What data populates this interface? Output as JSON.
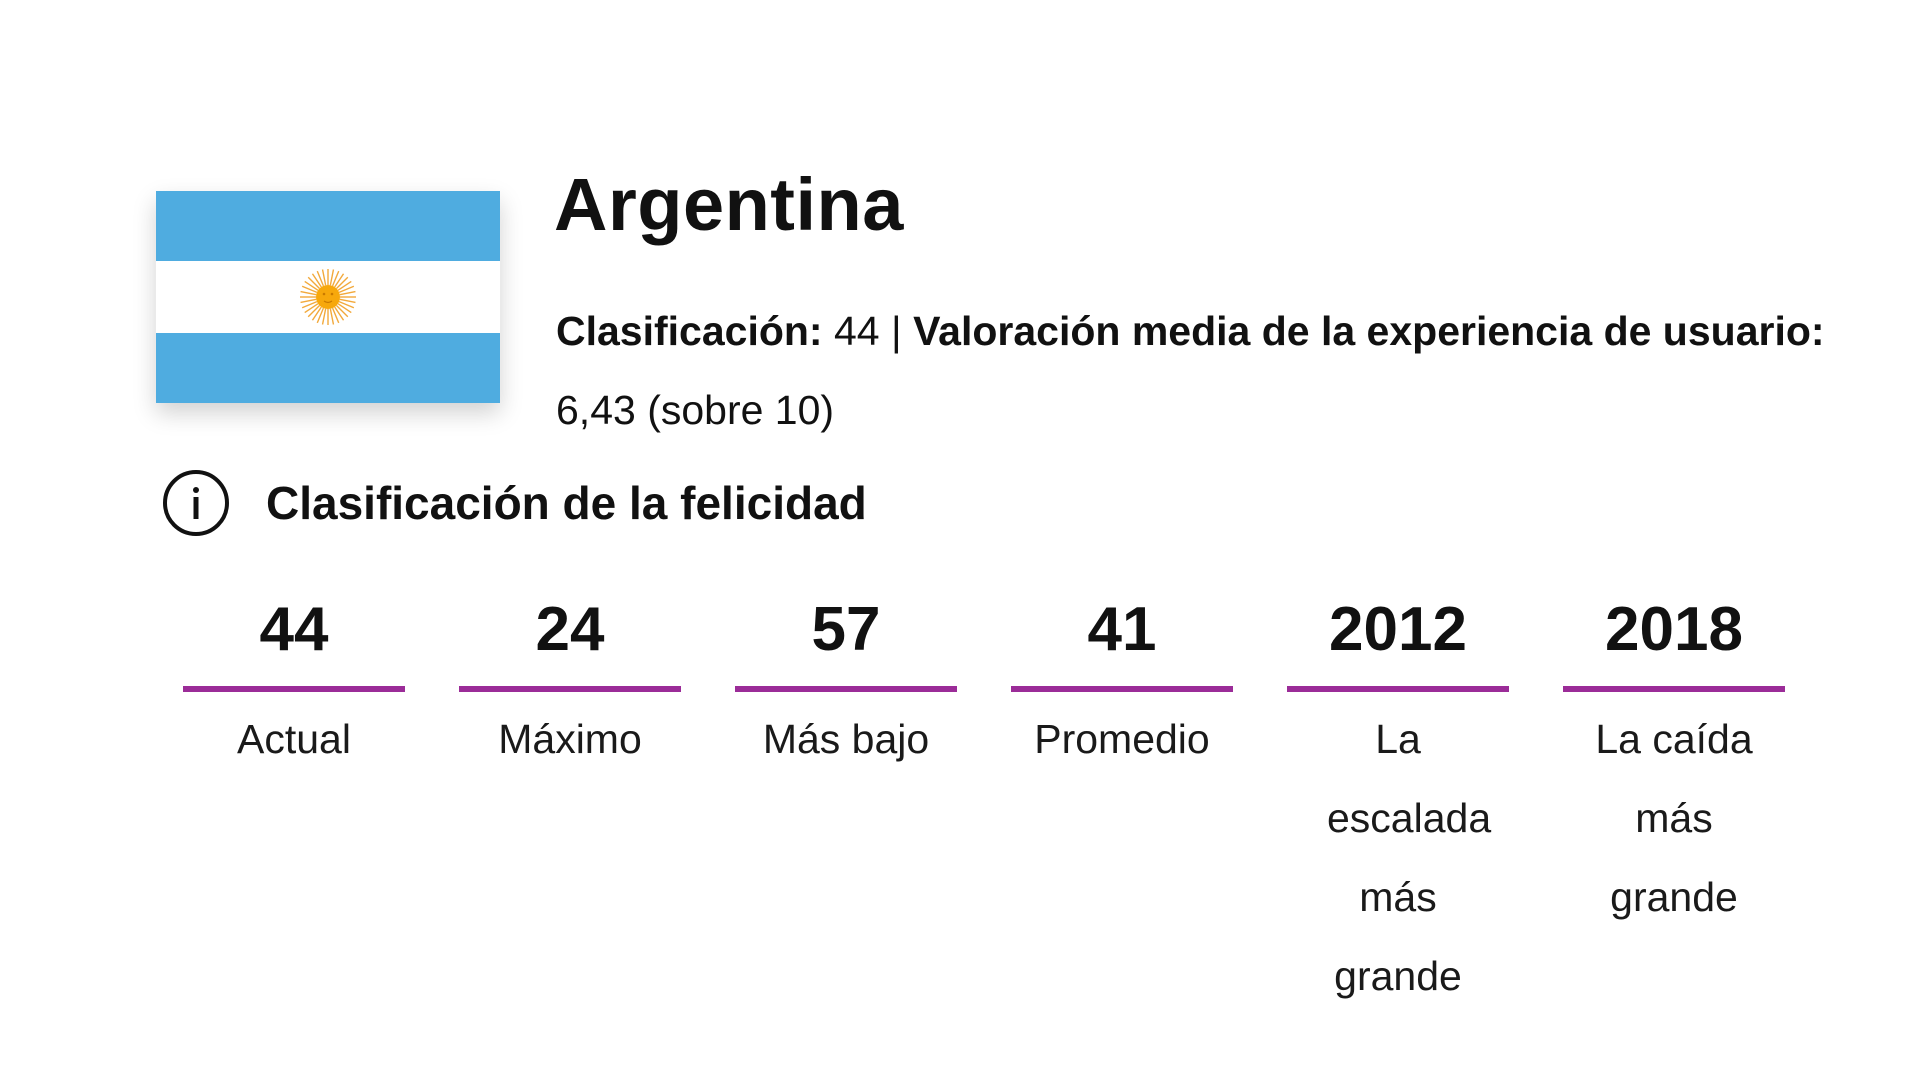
{
  "country": {
    "name": "Argentina",
    "flag": {
      "icon": "argentina-flag",
      "stripe_color": "#4FACE0",
      "center_color": "#FFFFFF",
      "sun_color": "#F6A623"
    }
  },
  "summary": {
    "rank_label": "Clasificación:",
    "rank_value": "44",
    "separator": "|",
    "rating_label": "Valoración media de la experiencia de usuario:",
    "rating_value": "6,43 (sobre 10)"
  },
  "happiness": {
    "info_icon": "info-circle-icon",
    "title": "Clasificación de la felicidad",
    "accent_color": "#9B2C98",
    "stats": [
      {
        "value": "44",
        "label": "Actual"
      },
      {
        "value": "24",
        "label": "Máximo"
      },
      {
        "value": "57",
        "label": "Más bajo"
      },
      {
        "value": "41",
        "label": "Promedio"
      },
      {
        "value": "2012",
        "label": "La escalada más grande"
      },
      {
        "value": "2018",
        "label": "La caída más grande"
      }
    ]
  }
}
